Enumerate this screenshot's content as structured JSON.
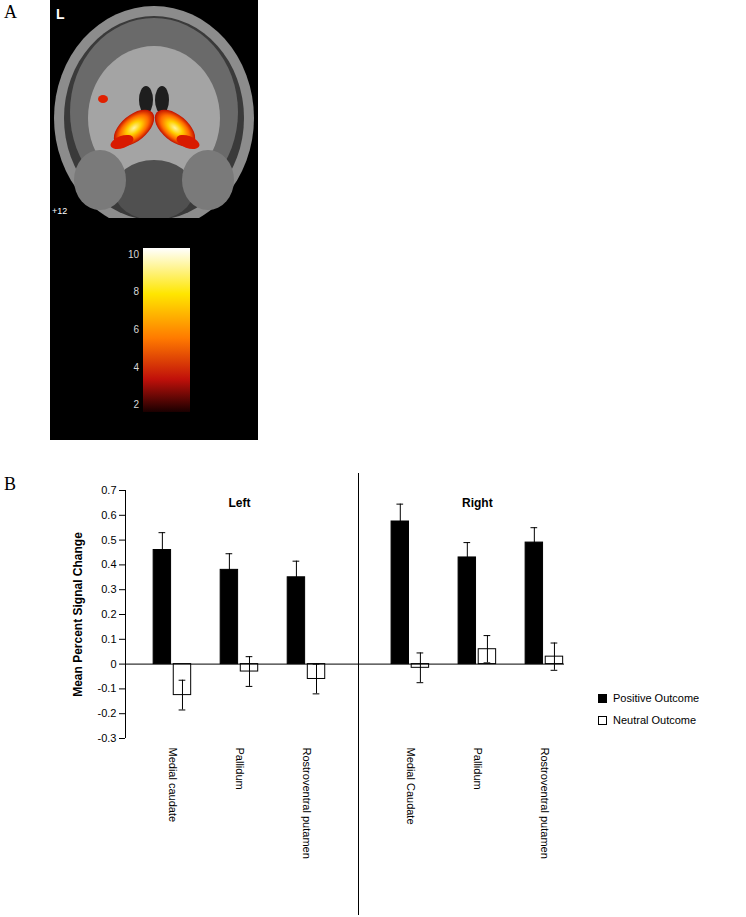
{
  "chart_data": [
    {
      "title": "A",
      "type": "image",
      "annotations": [
        "L",
        "+12"
      ],
      "colorbar": {
        "range": [
          1.6,
          10.3
        ],
        "ticks": [
          2,
          4,
          6,
          8,
          10
        ]
      }
    },
    {
      "title": "B",
      "type": "bar",
      "categories": [
        "Medial caudate",
        "Pallidum",
        "Rostroventral putamen",
        "Medial Caudate",
        "Pallidum",
        "Rostroventral putamen"
      ],
      "category_groups": [
        "Left",
        "Left",
        "Left",
        "Right",
        "Right",
        "Right"
      ],
      "ylabel": "Mean Percent Signal Change",
      "ylim": [
        -0.3,
        0.7
      ],
      "yticks": [
        -0.3,
        -0.2,
        -0.1,
        0,
        0.1,
        0.2,
        0.3,
        0.4,
        0.5,
        0.6,
        0.7
      ],
      "legend": "right",
      "series": [
        {
          "name": "Positive Outcome",
          "color": "#000000",
          "values": [
            0.46,
            0.38,
            0.35,
            0.575,
            0.43,
            0.49
          ],
          "errors": [
            0.07,
            0.065,
            0.065,
            0.07,
            0.06,
            0.06
          ]
        },
        {
          "name": "Neutral Outcome",
          "color": "#ffffff",
          "values": [
            -0.125,
            -0.03,
            -0.06,
            -0.015,
            0.06,
            0.03
          ],
          "errors": [
            0.06,
            0.06,
            0.06,
            0.06,
            0.055,
            0.055
          ]
        }
      ]
    }
  ]
}
